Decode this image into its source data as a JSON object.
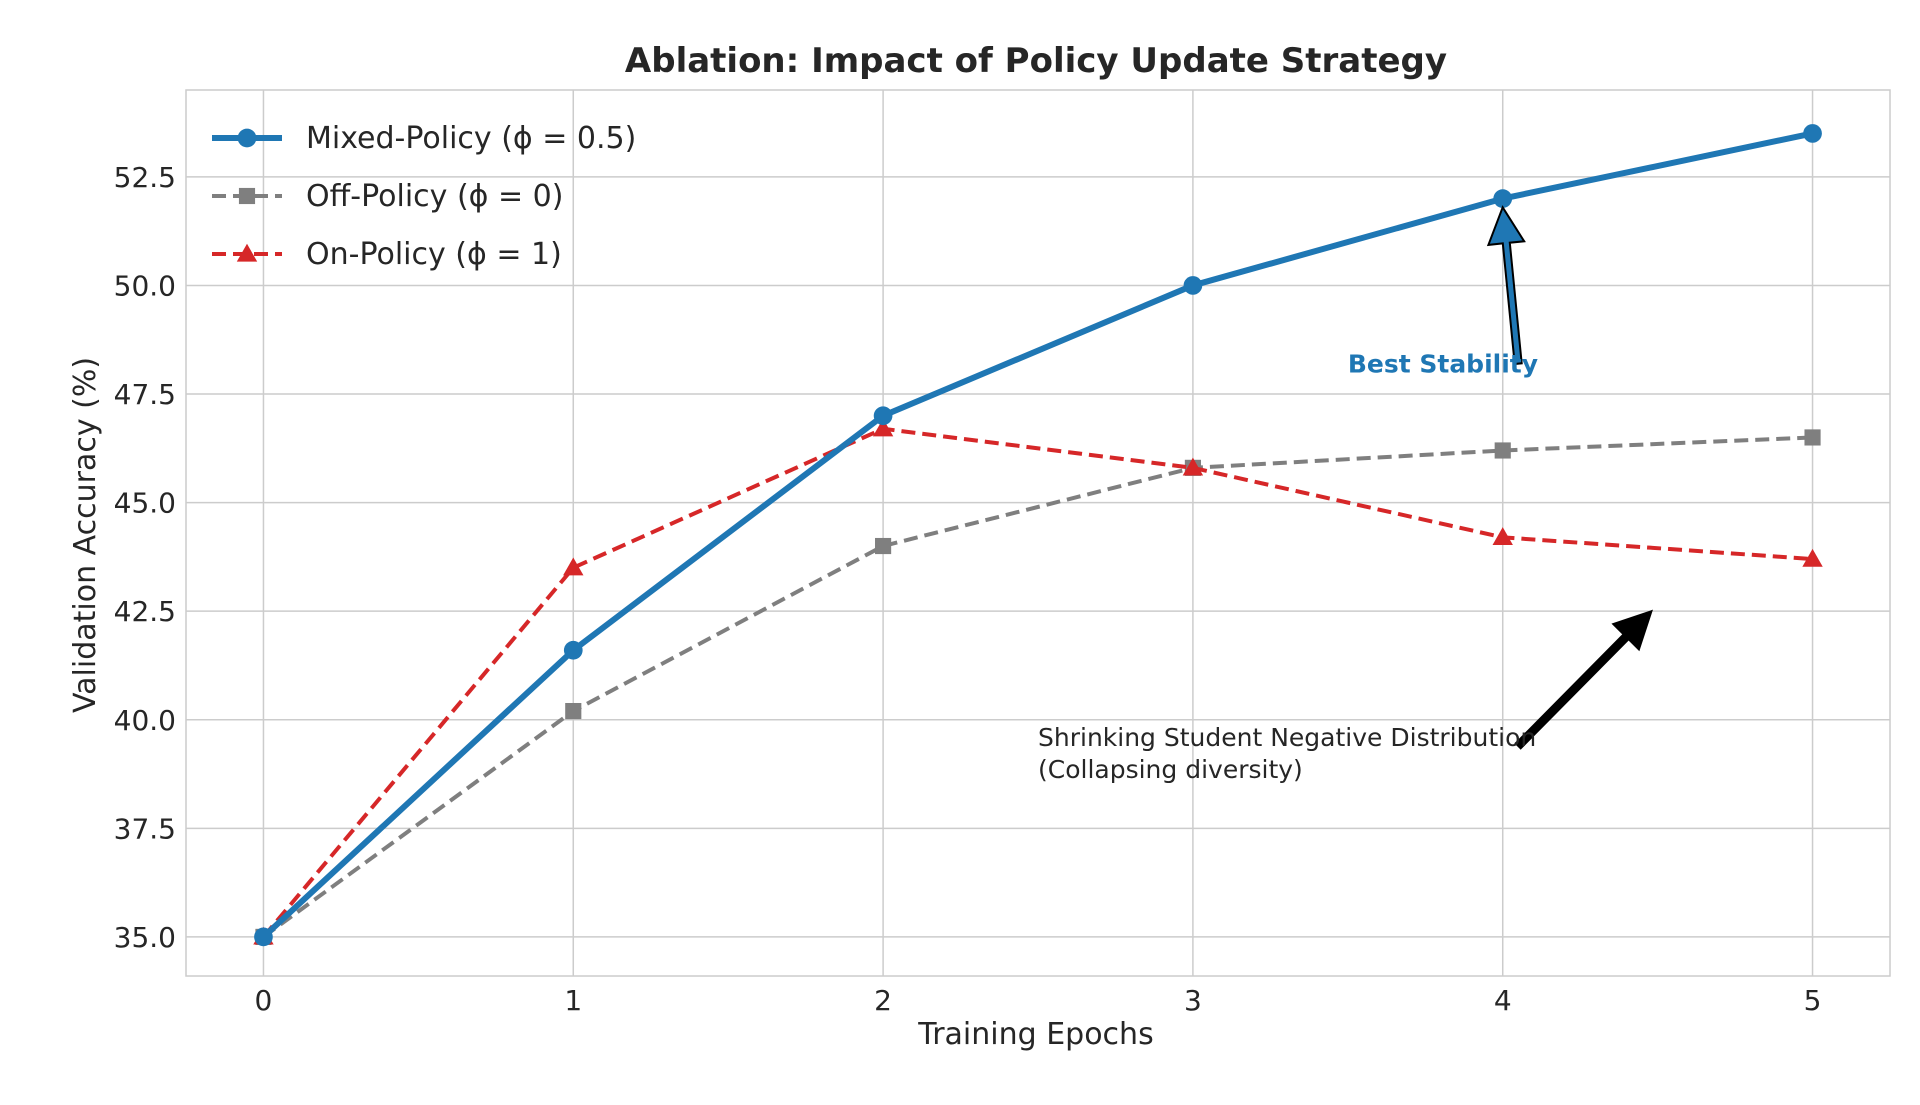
{
  "chart_data": {
    "type": "line",
    "title": "Ablation: Impact of Policy Update Strategy",
    "xlabel": "Training Epochs",
    "ylabel": "Validation Accuracy (%)",
    "x": [
      0,
      1,
      2,
      3,
      4,
      5
    ],
    "xlim": [
      -0.25,
      5.25
    ],
    "ylim": [
      34.1,
      54.5
    ],
    "x_ticks": [
      0,
      1,
      2,
      3,
      4,
      5
    ],
    "x_tick_labels": [
      "0",
      "1",
      "2",
      "3",
      "4",
      "5"
    ],
    "y_ticks": [
      35.0,
      37.5,
      40.0,
      42.5,
      45.0,
      47.5,
      50.0,
      52.5
    ],
    "y_tick_labels": [
      "35.0",
      "37.5",
      "40.0",
      "42.5",
      "45.0",
      "47.5",
      "50.0",
      "52.5"
    ],
    "grid": true,
    "legend_position": "top-left",
    "series": [
      {
        "name": "Mixed-Policy (ϕ = 0.5)",
        "values": [
          35.0,
          41.6,
          47.0,
          50.0,
          52.0,
          53.5
        ],
        "color": "#1f77b4",
        "line_style": "solid",
        "marker": "circle"
      },
      {
        "name": "Off-Policy (ϕ = 0)",
        "values": [
          35.0,
          40.2,
          44.0,
          45.8,
          46.2,
          46.5
        ],
        "color": "#7f7f7f",
        "line_style": "dashed",
        "marker": "square"
      },
      {
        "name": "On-Policy (ϕ = 1)",
        "values": [
          35.0,
          43.5,
          46.7,
          45.8,
          44.2,
          43.7
        ],
        "color": "#d62728",
        "line_style": "dashed",
        "marker": "triangle"
      }
    ],
    "annotations": [
      {
        "lines": [
          "Best Stability"
        ],
        "color": "#1f77b4",
        "bold": true,
        "text_at": [
          3.5,
          48.0
        ],
        "arrow_from": [
          4.05,
          48.2
        ],
        "arrow_to": [
          4.0,
          51.8
        ]
      },
      {
        "lines": [
          "Shrinking Student Negative Distribution",
          "(Collapsing diversity)"
        ],
        "color": "#000000",
        "bold": false,
        "text_at": [
          2.5,
          39.4
        ],
        "arrow_from": [
          4.05,
          39.4
        ],
        "arrow_to": [
          4.48,
          42.5
        ]
      }
    ]
  }
}
